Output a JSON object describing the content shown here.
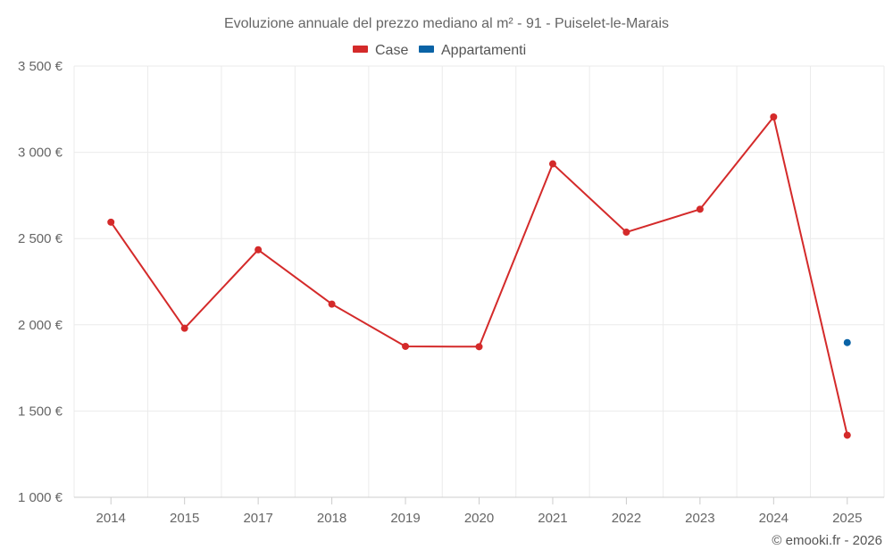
{
  "chart_data": {
    "type": "line",
    "title": "Evoluzione annuale del prezzo mediano al m² - 91 - Puiselet-le-Marais",
    "categories": [
      "2014",
      "2015",
      "2017",
      "2018",
      "2019",
      "2020",
      "2021",
      "2022",
      "2023",
      "2024",
      "2025"
    ],
    "series": [
      {
        "name": "Case",
        "color": "#d42a2a",
        "values": [
          2595,
          1980,
          2435,
          2120,
          1875,
          1873,
          2933,
          2537,
          2670,
          3205,
          1360
        ]
      },
      {
        "name": "Appartamenti",
        "color": "#0a63a6",
        "values": [
          null,
          null,
          null,
          null,
          null,
          null,
          null,
          null,
          null,
          null,
          1897
        ]
      }
    ],
    "ylim": [
      1000,
      3500
    ],
    "yticks": [
      1000,
      1500,
      2000,
      2500,
      3000,
      3500
    ],
    "ytick_labels": [
      "1 000 €",
      "1 500 €",
      "2 000 €",
      "2 500 €",
      "3 000 €",
      "3 500 €"
    ],
    "legend_position": "top-center",
    "grid": true
  },
  "credit": "© emooki.fr - 2026"
}
